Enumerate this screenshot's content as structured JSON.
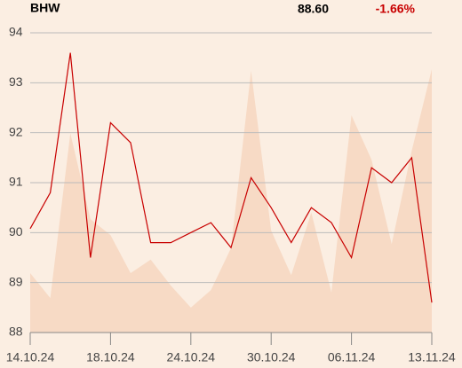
{
  "chart_data": {
    "type": "line",
    "symbol": "BHW",
    "price": "88.60",
    "change": "-1.66%",
    "categories": [
      "14.10.24",
      null,
      null,
      null,
      "18.10.24",
      null,
      null,
      null,
      "24.10.24",
      null,
      null,
      null,
      "30.10.24",
      null,
      null,
      null,
      "06.11.24",
      null,
      null,
      null,
      "13.11.24"
    ],
    "series": [
      {
        "type": "area",
        "color": "#f7dac5",
        "values": [
          89.19,
          88.69,
          91.99,
          90.27,
          89.95,
          89.19,
          89.46,
          88.94,
          88.5,
          88.85,
          89.69,
          93.24,
          90.04,
          89.15,
          90.4,
          88.8,
          92.35,
          91.46,
          89.77,
          91.64,
          93.27
        ]
      },
      {
        "type": "line",
        "color": "#c80000",
        "values": [
          90.08,
          90.8,
          93.6,
          89.5,
          92.2,
          91.8,
          89.8,
          89.8,
          90.0,
          90.2,
          89.7,
          91.1,
          90.5,
          89.8,
          90.5,
          90.2,
          89.5,
          91.3,
          91.0,
          91.5,
          88.6
        ]
      }
    ],
    "ylim": [
      88,
      94
    ],
    "yticks": [
      88,
      89,
      90,
      91,
      92,
      93,
      94
    ],
    "grid": true
  }
}
